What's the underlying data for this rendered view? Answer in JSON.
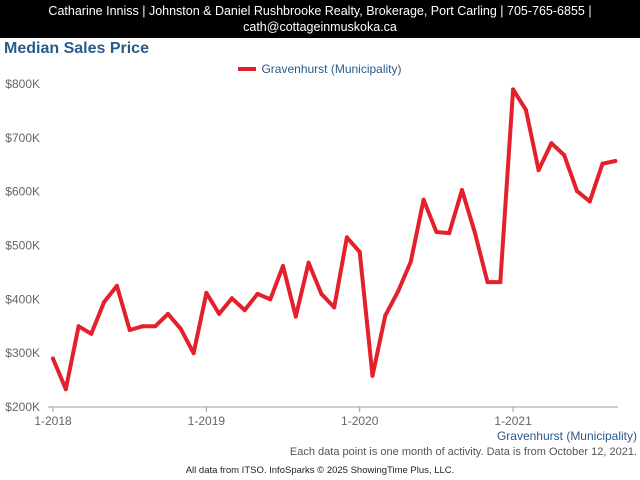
{
  "header": {
    "line1": "Catharine Inniss | Johnston & Daniel Rushbrooke Realty, Brokerage, Port Carling | 705-765-6855 |",
    "line2": "cath@cottageinmuskoka.ca"
  },
  "footnote": "Each data point is one month of activity. Data is from October 12, 2021.",
  "copyright": "All data from ITSO. InfoSparks © 2025 ShowingTime Plus, LLC.",
  "colors": {
    "series": "#e3202b",
    "title": "#2a5a8a",
    "header_bg": "#000000"
  },
  "chart_data": {
    "type": "line",
    "title": "Median Sales Price",
    "legend_position": "top-center",
    "grid": false,
    "x": [
      "2018-01",
      "2018-02",
      "2018-03",
      "2018-04",
      "2018-05",
      "2018-06",
      "2018-07",
      "2018-08",
      "2018-09",
      "2018-10",
      "2018-11",
      "2018-12",
      "2019-01",
      "2019-02",
      "2019-03",
      "2019-04",
      "2019-05",
      "2019-06",
      "2019-07",
      "2019-08",
      "2019-09",
      "2019-10",
      "2019-11",
      "2019-12",
      "2020-01",
      "2020-02",
      "2020-03",
      "2020-04",
      "2020-05",
      "2020-06",
      "2020-07",
      "2020-08",
      "2020-09",
      "2020-10",
      "2020-11",
      "2020-12",
      "2021-01",
      "2021-02",
      "2021-03",
      "2021-04",
      "2021-05",
      "2021-06",
      "2021-07",
      "2021-08",
      "2021-09"
    ],
    "xticks": [
      "1-2018",
      "1-2019",
      "1-2020",
      "1-2021"
    ],
    "yticks": [
      "$200K",
      "$300K",
      "$400K",
      "$500K",
      "$600K",
      "$700K",
      "$800K"
    ],
    "ylim": [
      200000,
      800000
    ],
    "series": [
      {
        "name": "Gravenhurst (Municipality)",
        "values": [
          290000,
          233000,
          350000,
          336000,
          395000,
          425000,
          343000,
          350000,
          350000,
          373000,
          345000,
          300000,
          412000,
          373000,
          402000,
          380000,
          410000,
          400000,
          462000,
          368000,
          468000,
          410000,
          385000,
          515000,
          488000,
          258000,
          370000,
          415000,
          470000,
          585000,
          525000,
          523000,
          603000,
          525000,
          432000,
          432000,
          790000,
          752000,
          640000,
          690000,
          668000,
          601000,
          582000,
          652000,
          657000
        ]
      }
    ]
  }
}
